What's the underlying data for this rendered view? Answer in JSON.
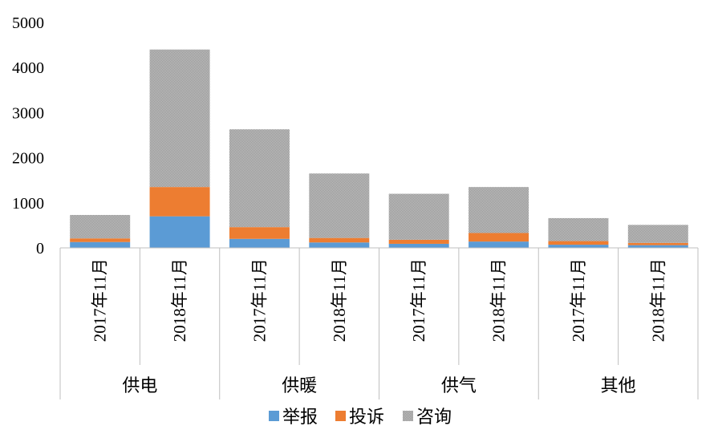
{
  "chart_data": {
    "type": "bar",
    "stacked": true,
    "groups": [
      "供电",
      "供暖",
      "供气",
      "其他"
    ],
    "categories": [
      "2017年11月",
      "2018年11月",
      "2017年11月",
      "2018年11月",
      "2017年11月",
      "2018年11月",
      "2017年11月",
      "2018年11月"
    ],
    "series": [
      {
        "name": "举报",
        "color": "#5B9BD5",
        "values": [
          130,
          700,
          200,
          120,
          90,
          140,
          70,
          60
        ]
      },
      {
        "name": "投诉",
        "color": "#ED7D31",
        "values": [
          80,
          650,
          260,
          100,
          90,
          190,
          80,
          50
        ]
      },
      {
        "name": "咨询",
        "color": "#A5A5A5",
        "values": [
          520,
          3050,
          2170,
          1430,
          1020,
          1020,
          510,
          400
        ]
      }
    ],
    "yticks": [
      "0",
      "1000",
      "2000",
      "3000",
      "4000",
      "5000"
    ],
    "ylim": [
      0,
      5000
    ],
    "legend_position": "bottom",
    "grid": false
  }
}
